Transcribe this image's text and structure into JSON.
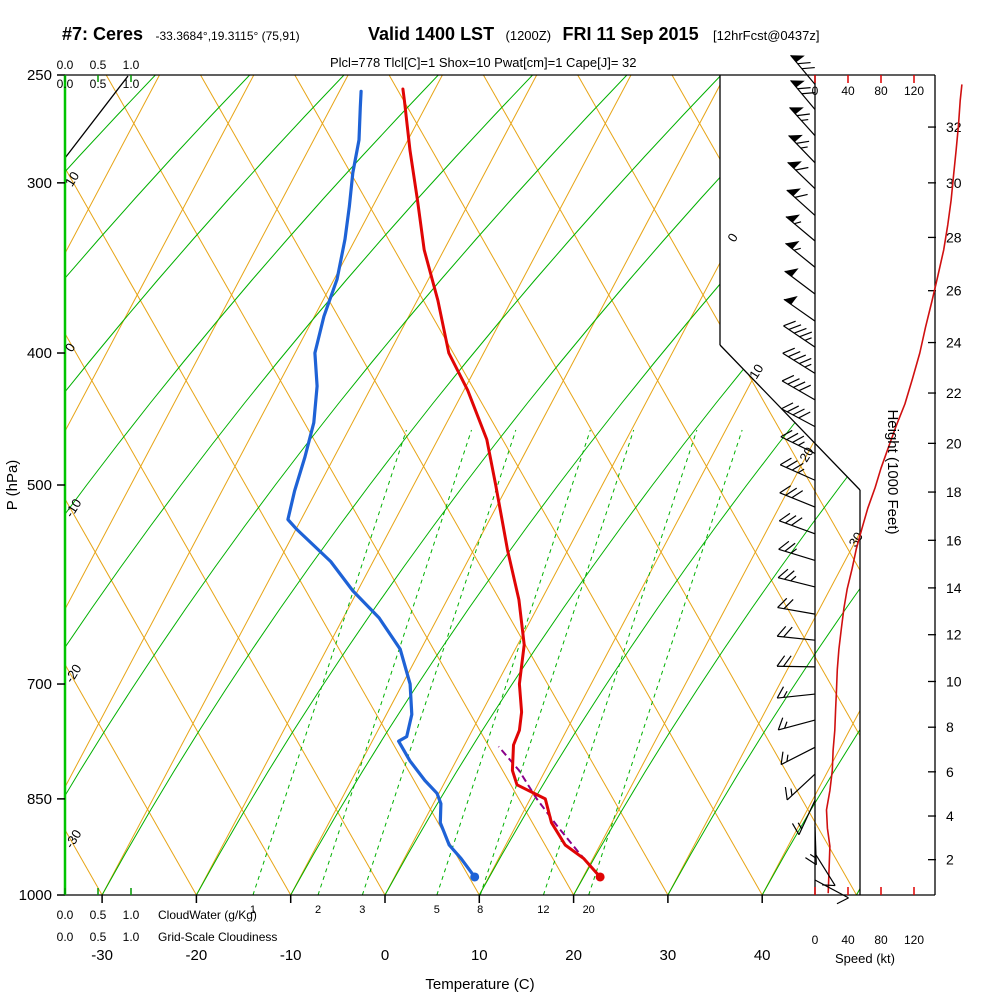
{
  "header": {
    "station": "#7: Ceres",
    "coords": "-33.3684°,19.3115° (75,91)",
    "valid_main": "Valid 1400 LST",
    "valid_zulu": "(1200Z)",
    "valid_date": "FRI 11 Sep 2015",
    "forecast_tag": "[12hrFcst@0437z]",
    "indices": "Plcl=778 Tlcl[C]=1 Shox=10 Pwat[cm]=1 Cape[J]= 32"
  },
  "axes": {
    "pressure": {
      "label": "P (hPa)",
      "ticks": [
        250,
        300,
        400,
        500,
        700,
        850,
        1000
      ]
    },
    "temperature": {
      "label": "Temperature (C)",
      "ticks": [
        -30,
        -20,
        -10,
        0,
        10,
        20,
        30,
        40
      ]
    },
    "height": {
      "label": "Height (1000 Feet)"
    },
    "speed": {
      "label": "Speed (kt)",
      "ticks": [
        0,
        40,
        80,
        120
      ]
    },
    "cloudwater": {
      "scale": [
        "0.0",
        "0.5",
        "1.0"
      ],
      "label": "CloudWater (g/Kg)"
    },
    "cloudiness": {
      "scale": [
        "0.0",
        "0.5",
        "1.0"
      ],
      "label": "Grid-Scale Cloudiness"
    }
  },
  "chart_data": {
    "type": "skewt-logp-sounding",
    "pressure_range_hPa": [
      250,
      1000
    ],
    "temp_axis_range_C": [
      -35,
      45
    ],
    "isotherms_C": {
      "min": -80,
      "max": 50,
      "step": 10
    },
    "dry_adiabats_C": {
      "min": -30,
      "max": 100,
      "step": 10
    },
    "isotherm_right_labels_C": [
      0,
      10,
      20,
      30
    ],
    "adiabat_left_labels_C": [
      10,
      0,
      -10,
      -20,
      -30
    ],
    "moist_adiabats_t1000_C": [
      -90,
      -80,
      -70,
      -60,
      -50,
      -40,
      -30,
      -20,
      -10,
      0,
      10,
      20,
      30,
      40,
      50
    ],
    "mixing_ratio_lines": [
      {
        "value": 1,
        "t1000": -14.0
      },
      {
        "value": 2,
        "t1000": -7.1
      },
      {
        "value": 3,
        "t1000": -2.4
      },
      {
        "value": 5,
        "t1000": 5.5
      },
      {
        "value": 8,
        "t1000": 10.1
      },
      {
        "value": 12,
        "t1000": 16.8
      },
      {
        "value": 20,
        "t1000": 21.6
      }
    ],
    "temperature_profile": [
      [
        970,
        21.8
      ],
      [
        940,
        19.0
      ],
      [
        919,
        16.3
      ],
      [
        885,
        13.6
      ],
      [
        850,
        11.6
      ],
      [
        830,
        7.8
      ],
      [
        810,
        6.5
      ],
      [
        776,
        5.2
      ],
      [
        757,
        5.0
      ],
      [
        734,
        4.2
      ],
      [
        700,
        2.4
      ],
      [
        655,
        0.7
      ],
      [
        607,
        -2.4
      ],
      [
        558,
        -6.4
      ],
      [
        530,
        -8.7
      ],
      [
        500,
        -11.3
      ],
      [
        463,
        -14.8
      ],
      [
        426,
        -19.6
      ],
      [
        400,
        -23.7
      ],
      [
        366,
        -27.8
      ],
      [
        336,
        -32.1
      ],
      [
        309,
        -35.6
      ],
      [
        284,
        -39.2
      ],
      [
        261,
        -42.6
      ],
      [
        256,
        -43.4
      ]
    ],
    "dewpoint_profile": [
      [
        970,
        8.5
      ],
      [
        940,
        6.0
      ],
      [
        919,
        4.0
      ],
      [
        885,
        1.8
      ],
      [
        857,
        0.8
      ],
      [
        842,
        -0.2
      ],
      [
        824,
        -2.2
      ],
      [
        797,
        -4.9
      ],
      [
        771,
        -7.2
      ],
      [
        765,
        -6.6
      ],
      [
        737,
        -7.3
      ],
      [
        700,
        -9.2
      ],
      [
        660,
        -12.2
      ],
      [
        626,
        -16.2
      ],
      [
        598,
        -20.5
      ],
      [
        569,
        -24.5
      ],
      [
        539,
        -29.9
      ],
      [
        530,
        -31.4
      ],
      [
        505,
        -32.3
      ],
      [
        477,
        -33.1
      ],
      [
        450,
        -34.1
      ],
      [
        423,
        -35.8
      ],
      [
        400,
        -37.9
      ],
      [
        376,
        -39.0
      ],
      [
        353,
        -39.7
      ],
      [
        330,
        -41.1
      ],
      [
        312,
        -42.5
      ],
      [
        295,
        -44.0
      ],
      [
        279,
        -45.2
      ],
      [
        264,
        -46.9
      ],
      [
        257,
        -47.7
      ]
    ],
    "parcel_path": [
      [
        970,
        21.8
      ],
      [
        930,
        18.1
      ],
      [
        890,
        14.4
      ],
      [
        850,
        10.7
      ],
      [
        810,
        7.2
      ],
      [
        778,
        3.7
      ]
    ],
    "surface_temp_point": [
      970,
      21.8
    ],
    "surface_dewpoint_point": [
      970,
      8.5
    ],
    "wind_speed_profile_kt": [
      [
        997,
        16
      ],
      [
        960,
        17
      ],
      [
        921,
        18
      ],
      [
        893,
        15
      ],
      [
        866,
        14
      ],
      [
        838,
        18
      ],
      [
        810,
        21
      ],
      [
        783,
        22
      ],
      [
        757,
        24
      ],
      [
        731,
        25
      ],
      [
        707,
        26
      ],
      [
        683,
        27
      ],
      [
        660,
        29
      ],
      [
        637,
        32
      ],
      [
        616,
        35
      ],
      [
        596,
        39
      ],
      [
        576,
        45
      ],
      [
        557,
        50
      ],
      [
        538,
        57
      ],
      [
        520,
        64
      ],
      [
        502,
        73
      ],
      [
        486,
        80
      ],
      [
        471,
        88
      ],
      [
        453,
        98
      ],
      [
        436,
        109
      ],
      [
        418,
        118
      ],
      [
        400,
        127
      ],
      [
        383,
        134
      ],
      [
        366,
        142
      ],
      [
        351,
        149
      ],
      [
        336,
        156
      ],
      [
        322,
        161
      ],
      [
        309,
        165
      ],
      [
        296,
        168
      ],
      [
        284,
        171
      ],
      [
        272,
        174
      ],
      [
        261,
        176
      ],
      [
        254,
        178
      ]
    ],
    "wind_barbs": [
      {
        "p": 254,
        "dir": 320,
        "spd": 70
      },
      {
        "p": 265,
        "dir": 320,
        "spd": 70
      },
      {
        "p": 277,
        "dir": 318,
        "spd": 65
      },
      {
        "p": 290,
        "dir": 316,
        "spd": 65
      },
      {
        "p": 303,
        "dir": 314,
        "spd": 60
      },
      {
        "p": 317,
        "dir": 312,
        "spd": 60
      },
      {
        "p": 331,
        "dir": 310,
        "spd": 55
      },
      {
        "p": 346,
        "dir": 309,
        "spd": 55
      },
      {
        "p": 362,
        "dir": 307,
        "spd": 50
      },
      {
        "p": 379,
        "dir": 305,
        "spd": 50
      },
      {
        "p": 396,
        "dir": 304,
        "spd": 45
      },
      {
        "p": 414,
        "dir": 302,
        "spd": 45
      },
      {
        "p": 433,
        "dir": 300,
        "spd": 40
      },
      {
        "p": 453,
        "dir": 298,
        "spd": 40
      },
      {
        "p": 474,
        "dir": 296,
        "spd": 35
      },
      {
        "p": 496,
        "dir": 294,
        "spd": 35
      },
      {
        "p": 519,
        "dir": 292,
        "spd": 30
      },
      {
        "p": 543,
        "dir": 290,
        "spd": 30
      },
      {
        "p": 568,
        "dir": 287,
        "spd": 25
      },
      {
        "p": 594,
        "dir": 284,
        "spd": 25
      },
      {
        "p": 622,
        "dir": 280,
        "spd": 20
      },
      {
        "p": 650,
        "dir": 276,
        "spd": 20
      },
      {
        "p": 680,
        "dir": 271,
        "spd": 20
      },
      {
        "p": 712,
        "dir": 264,
        "spd": 15
      },
      {
        "p": 744,
        "dir": 255,
        "spd": 15
      },
      {
        "p": 779,
        "dir": 243,
        "spd": 15
      },
      {
        "p": 815,
        "dir": 227,
        "spd": 15
      },
      {
        "p": 852,
        "dir": 205,
        "spd": 15
      },
      {
        "p": 891,
        "dir": 178,
        "spd": 15
      },
      {
        "p": 932,
        "dir": 148,
        "spd": 10
      },
      {
        "p": 975,
        "dir": 118,
        "spd": 10
      }
    ],
    "height_levels": [
      {
        "kft": 2,
        "p": 942
      },
      {
        "kft": 4,
        "p": 875
      },
      {
        "kft": 6,
        "p": 812
      },
      {
        "kft": 8,
        "p": 753
      },
      {
        "kft": 10,
        "p": 697
      },
      {
        "kft": 12,
        "p": 644
      },
      {
        "kft": 14,
        "p": 595
      },
      {
        "kft": 16,
        "p": 549
      },
      {
        "kft": 18,
        "p": 506
      },
      {
        "kft": 20,
        "p": 466
      },
      {
        "kft": 22,
        "p": 428
      },
      {
        "kft": 24,
        "p": 393
      },
      {
        "kft": 26,
        "p": 360
      },
      {
        "kft": 28,
        "p": 329
      },
      {
        "kft": 30,
        "p": 300
      },
      {
        "kft": 32,
        "p": 273
      }
    ],
    "colors": {
      "lattice": "#e7a416",
      "green": "#00b000",
      "green_bright": "#00c400",
      "temperature": "#e00505",
      "dewpoint": "#1e62d6",
      "parcel": "#8a008a",
      "speed_line": "#d01010",
      "barb": "#000000",
      "indices_text": "#a000a0",
      "axis_red": "#dd0000",
      "axis_green": "#009900"
    }
  }
}
